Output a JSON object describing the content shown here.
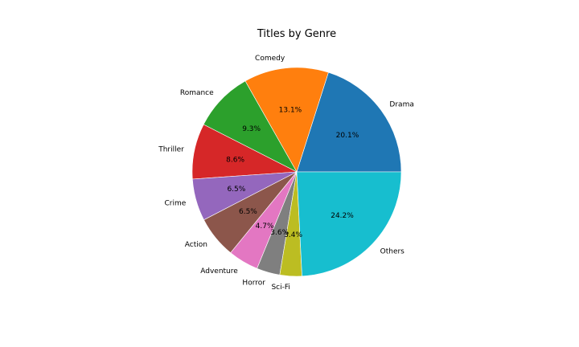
{
  "chart_data": {
    "type": "pie",
    "title": "Titles by Genre",
    "start_angle_deg": 0,
    "direction": "counterclockwise",
    "slices": [
      {
        "label": "Drama",
        "value": 20.1,
        "pct_label": "20.1%",
        "color": "#1f77b4"
      },
      {
        "label": "Comedy",
        "value": 13.1,
        "pct_label": "13.1%",
        "color": "#ff7f0e"
      },
      {
        "label": "Romance",
        "value": 9.3,
        "pct_label": "9.3%",
        "color": "#2ca02c"
      },
      {
        "label": "Thriller",
        "value": 8.6,
        "pct_label": "8.6%",
        "color": "#d62728"
      },
      {
        "label": "Crime",
        "value": 6.5,
        "pct_label": "6.5%",
        "color": "#9467bd"
      },
      {
        "label": "Action",
        "value": 6.5,
        "pct_label": "6.5%",
        "color": "#8c564b"
      },
      {
        "label": "Adventure",
        "value": 4.7,
        "pct_label": "4.7%",
        "color": "#e377c2"
      },
      {
        "label": "Horror",
        "value": 3.6,
        "pct_label": "3.6%",
        "color": "#7f7f7f"
      },
      {
        "label": "Sci-Fi",
        "value": 3.4,
        "pct_label": "3.4%",
        "color": "#bcbd22"
      },
      {
        "label": "Others",
        "value": 24.2,
        "pct_label": "24.2%",
        "color": "#17becf"
      }
    ]
  }
}
